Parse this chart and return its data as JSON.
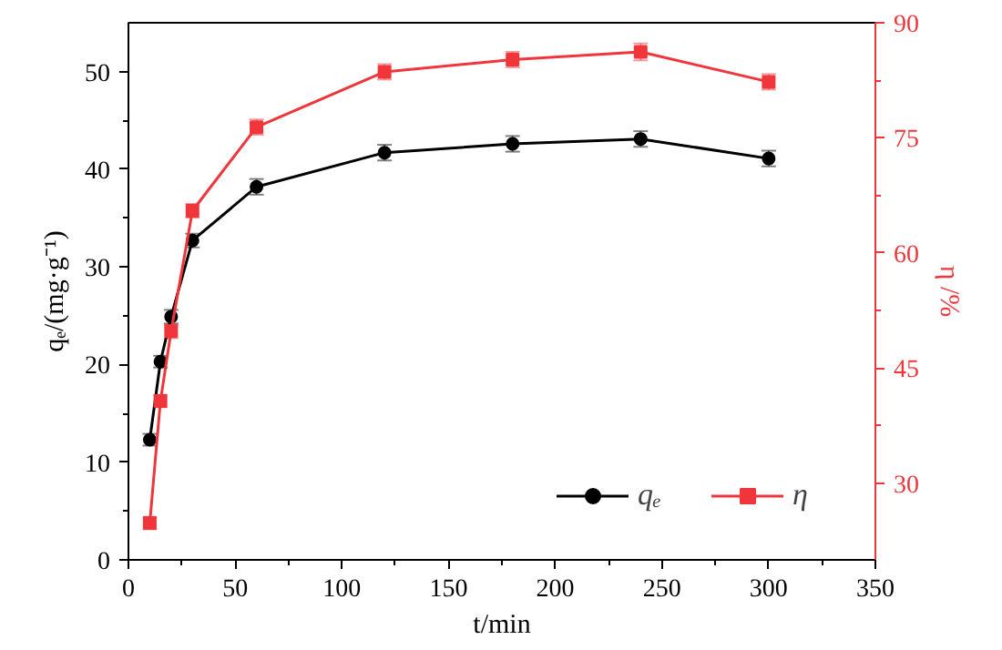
{
  "chart_data": {
    "type": "line",
    "xlabel": "t/min",
    "ylabel": "qₑ/(mg·g⁻¹)",
    "y2label": "η /%",
    "x": [
      10,
      15,
      20,
      30,
      60,
      120,
      180,
      240,
      300
    ],
    "xlim": [
      0,
      350
    ],
    "xticks": [
      0,
      50,
      100,
      150,
      200,
      250,
      300,
      350
    ],
    "ylim": [
      0,
      55
    ],
    "yticks": [
      0,
      10,
      20,
      30,
      40,
      50
    ],
    "y2lim": [
      20,
      90
    ],
    "y2ticks": [
      30,
      45,
      60,
      75,
      90
    ],
    "line_style": "solid",
    "grid": false,
    "legend": "bottom right",
    "series": [
      {
        "name": "qₑ",
        "color": "#000000",
        "marker": "circle",
        "values": [
          12.3,
          20.3,
          24.9,
          32.7,
          38.2,
          41.7,
          42.6,
          43.1,
          41.1
        ],
        "errors": [
          0.6,
          0.6,
          0.7,
          0.7,
          0.8,
          0.8,
          0.8,
          0.8,
          0.8
        ]
      },
      {
        "name": "η",
        "color": "#f0353b",
        "marker": "square",
        "axis": "y2",
        "values": [
          24.8,
          40.7,
          49.8,
          65.5,
          76.4,
          83.6,
          85.2,
          86.2,
          82.3
        ],
        "errors": [
          0.8,
          0.8,
          0.9,
          0.9,
          1.0,
          1.0,
          1.0,
          1.1,
          1.0
        ]
      }
    ]
  }
}
